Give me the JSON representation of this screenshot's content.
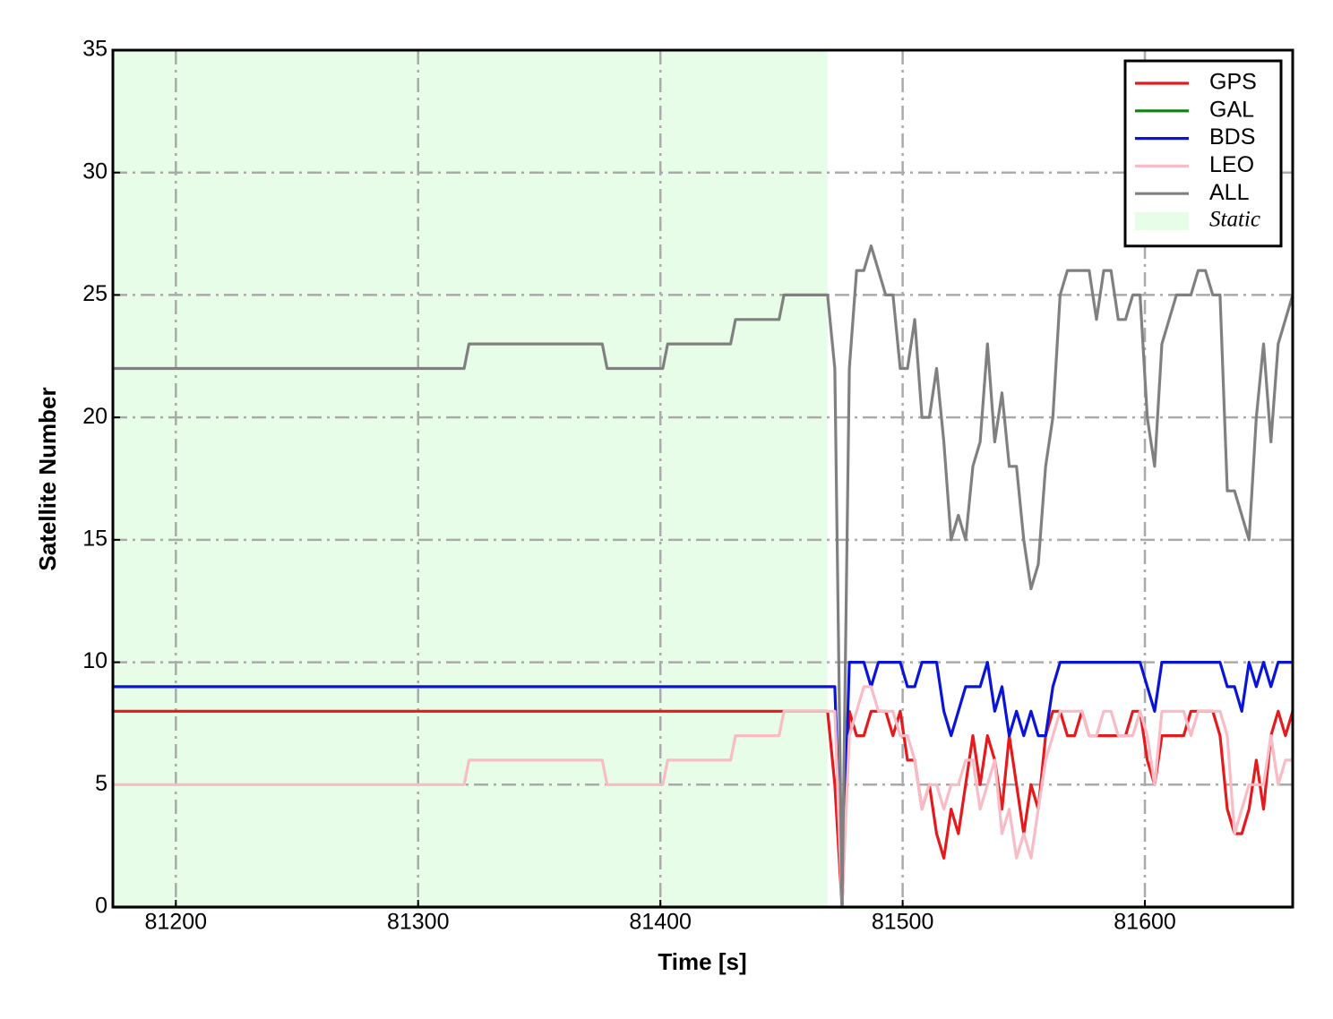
{
  "chart_data": {
    "type": "line",
    "xlabel": "Time [s]",
    "ylabel": "Satellite Number",
    "xlim": [
      81174,
      81661
    ],
    "ylim": [
      0,
      35
    ],
    "xticks": [
      81200,
      81300,
      81400,
      81500,
      81600
    ],
    "yticks": [
      0,
      5,
      10,
      15,
      20,
      25,
      30,
      35
    ],
    "grid": true,
    "legend": "upper right",
    "spans": [
      {
        "name": "Static",
        "color": "#e8fde8",
        "x": [
          81174,
          81469
        ]
      }
    ],
    "x": [
      81174,
      81319,
      81321,
      81376,
      81378,
      81401,
      81403,
      81429,
      81431,
      81449,
      81451,
      81469,
      81472,
      81475,
      81478,
      81481,
      81484,
      81487,
      81490,
      81493,
      81496,
      81499,
      81502,
      81505,
      81508,
      81511,
      81514,
      81517,
      81520,
      81523,
      81526,
      81529,
      81532,
      81535,
      81538,
      81541,
      81544,
      81547,
      81550,
      81553,
      81556,
      81559,
      81562,
      81565,
      81568,
      81571,
      81574,
      81577,
      81580,
      81583,
      81586,
      81589,
      81592,
      81595,
      81598,
      81601,
      81604,
      81607,
      81610,
      81613,
      81616,
      81619,
      81622,
      81625,
      81628,
      81631,
      81634,
      81637,
      81640,
      81643,
      81646,
      81649,
      81652,
      81655,
      81658,
      81661
    ],
    "series": [
      {
        "name": "GPS",
        "color": "#e41a1c",
        "values": [
          8,
          8,
          8,
          8,
          8,
          8,
          8,
          8,
          8,
          8,
          8,
          8,
          5,
          0,
          8,
          7,
          7,
          8,
          8,
          8,
          7,
          8,
          6,
          6,
          4,
          5,
          3,
          2,
          4,
          3,
          5,
          7,
          5,
          7,
          6,
          4,
          7,
          5,
          3,
          5,
          4,
          7,
          8,
          8,
          7,
          7,
          8,
          7,
          7,
          7,
          7,
          7,
          7,
          8,
          8,
          6,
          5,
          7,
          7,
          7,
          7,
          8,
          8,
          8,
          8,
          7,
          4,
          3,
          3,
          4,
          6,
          4,
          7,
          8,
          7,
          8
        ]
      },
      {
        "name": "GAL",
        "color": "#138013",
        "values": [
          0,
          0,
          0,
          0,
          0,
          0,
          0,
          0,
          0,
          0,
          0,
          0,
          0,
          0,
          0,
          0,
          0,
          0,
          0,
          0,
          0,
          0,
          0,
          0,
          0,
          0,
          0,
          0,
          0,
          0,
          0,
          0,
          0,
          0,
          0,
          0,
          0,
          0,
          0,
          0,
          0,
          0,
          0,
          0,
          0,
          0,
          0,
          0,
          0,
          0,
          0,
          0,
          0,
          0,
          0,
          0,
          0,
          0,
          0,
          0,
          0,
          0,
          0,
          0,
          0,
          0,
          0,
          0,
          0,
          0,
          0,
          0,
          0,
          0,
          0,
          0
        ]
      },
      {
        "name": "BDS",
        "color": "#0a14d8",
        "values": [
          9,
          9,
          9,
          9,
          9,
          9,
          9,
          9,
          9,
          9,
          9,
          9,
          9,
          0,
          10,
          10,
          10,
          9,
          10,
          10,
          10,
          10,
          9,
          9,
          10,
          10,
          10,
          8,
          7,
          8,
          9,
          9,
          9,
          10,
          8,
          9,
          7,
          8,
          7,
          8,
          7,
          7,
          9,
          10,
          10,
          10,
          10,
          10,
          10,
          10,
          10,
          10,
          10,
          10,
          10,
          9,
          8,
          10,
          10,
          10,
          10,
          10,
          10,
          10,
          10,
          10,
          9,
          9,
          8,
          10,
          9,
          10,
          9,
          10,
          10,
          10
        ]
      },
      {
        "name": "LEO",
        "color": "#f9bcc6",
        "values": [
          5,
          5,
          6,
          6,
          5,
          5,
          6,
          6,
          7,
          7,
          8,
          8,
          8,
          0,
          7,
          8,
          9,
          9,
          8,
          8,
          8,
          7,
          7,
          6,
          4,
          5,
          5,
          4,
          5,
          5,
          6,
          6,
          4,
          5,
          6,
          3,
          4,
          2,
          3,
          2,
          4,
          6,
          7,
          8,
          8,
          8,
          8,
          7,
          7,
          8,
          8,
          7,
          7,
          7,
          8,
          7,
          5,
          8,
          8,
          8,
          8,
          7,
          8,
          8,
          8,
          8,
          7,
          3,
          4,
          5,
          5,
          5,
          7,
          5,
          6,
          6
        ]
      },
      {
        "name": "ALL",
        "color": "#808080",
        "values": [
          22,
          22,
          23,
          23,
          22,
          22,
          23,
          23,
          24,
          24,
          25,
          25,
          22,
          0,
          22,
          26,
          26,
          27,
          26,
          25,
          25,
          22,
          22,
          24,
          20,
          20,
          22,
          19,
          15,
          16,
          15,
          18,
          19,
          23,
          19,
          21,
          18,
          18,
          15,
          13,
          14,
          18,
          20,
          25,
          26,
          26,
          26,
          26,
          24,
          26,
          26,
          24,
          24,
          25,
          25,
          20,
          18,
          23,
          24,
          25,
          25,
          25,
          26,
          26,
          25,
          25,
          17,
          17,
          16,
          15,
          20,
          23,
          19,
          23,
          24,
          25
        ]
      }
    ]
  }
}
